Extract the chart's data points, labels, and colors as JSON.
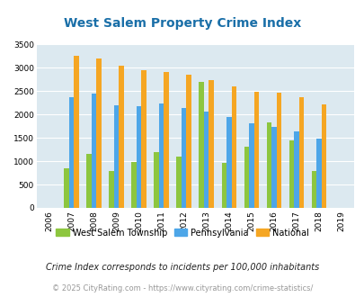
{
  "title": "West Salem Property Crime Index",
  "years": [
    2006,
    2007,
    2008,
    2009,
    2010,
    2011,
    2012,
    2013,
    2014,
    2015,
    2016,
    2017,
    2018,
    2019
  ],
  "west_salem": [
    0,
    850,
    1150,
    800,
    980,
    1200,
    1100,
    2700,
    960,
    1310,
    1840,
    1450,
    790,
    0
  ],
  "pennsylvania": [
    0,
    2380,
    2440,
    2200,
    2170,
    2230,
    2150,
    2070,
    1950,
    1810,
    1730,
    1640,
    1490,
    0
  ],
  "national": [
    0,
    3260,
    3210,
    3040,
    2960,
    2920,
    2860,
    2740,
    2600,
    2490,
    2470,
    2380,
    2210,
    0
  ],
  "color_west_salem": "#8dc63f",
  "color_pennsylvania": "#4da6e8",
  "color_national": "#f5a623",
  "bg_color": "#dce9f0",
  "title_color": "#1a6fa8",
  "ylabel_max": 3500,
  "bar_width": 0.22,
  "footnote1": "Crime Index corresponds to incidents per 100,000 inhabitants",
  "footnote2": "© 2025 CityRating.com - https://www.cityrating.com/crime-statistics/",
  "legend_labels": [
    "West Salem Township",
    "Pennsylvania",
    "National"
  ],
  "yticks": [
    0,
    500,
    1000,
    1500,
    2000,
    2500,
    3000,
    3500
  ]
}
